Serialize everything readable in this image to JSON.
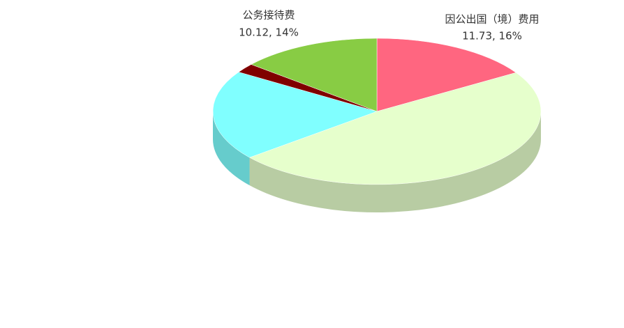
{
  "chart_data": {
    "type": "pie",
    "categories": [
      "因公出国（境）费用",
      null,
      null,
      null,
      "公务接待费"
    ],
    "values": [
      11.73,
      35,
      14.5,
      1.5,
      10.12
    ],
    "value_labels": [
      "11.73, 16%",
      null,
      null,
      null,
      "10.12, 14%"
    ],
    "colors": [
      "#ff6680",
      "#e6ffcc",
      "#80ffff",
      "#800000",
      "#88cc44"
    ]
  }
}
